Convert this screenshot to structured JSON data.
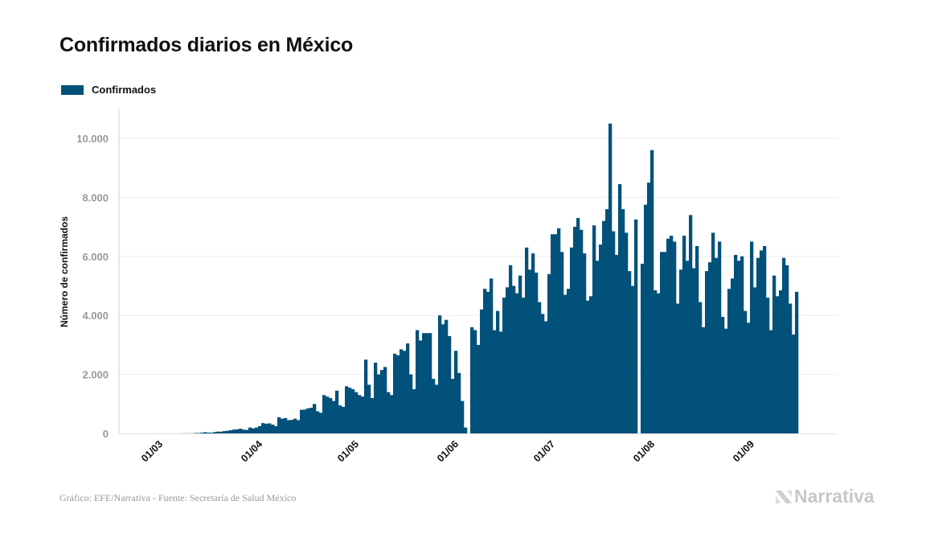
{
  "title": "Confirmados diarios en México",
  "footer": "Gráfico: EFE/Narrativa - Fuente: Secretaría de Salud México",
  "logo_text": "Narrativa",
  "colors": {
    "bar": "#02517a",
    "grid": "#ececec",
    "tick_label": "#999999"
  },
  "chart_data": {
    "type": "bar",
    "title": "Confirmados diarios en México",
    "ylabel": "Número de confirmados",
    "xlabel": "",
    "ylim": [
      0,
      11000
    ],
    "yticks": [
      0,
      2000,
      4000,
      6000,
      8000,
      10000
    ],
    "ytick_labels": [
      "0",
      "2.000",
      "4.000",
      "6.000",
      "8.000",
      "10.000"
    ],
    "xtick_labels": [
      "01/03",
      "01/04",
      "01/05",
      "01/06",
      "01/07",
      "01/08",
      "01/09"
    ],
    "grid": true,
    "legend": {
      "position": "top-left",
      "entries": [
        "Confirmados"
      ]
    },
    "x": [
      "28/02",
      "29/02",
      "01/03",
      "02/03",
      "03/03",
      "04/03",
      "05/03",
      "06/03",
      "07/03",
      "08/03",
      "09/03",
      "10/03",
      "11/03",
      "12/03",
      "13/03",
      "14/03",
      "15/03",
      "16/03",
      "17/03",
      "18/03",
      "19/03",
      "20/03",
      "21/03",
      "22/03",
      "23/03",
      "24/03",
      "25/03",
      "26/03",
      "27/03",
      "28/03",
      "29/03",
      "30/03",
      "31/03",
      "01/04",
      "02/04",
      "03/04",
      "04/04",
      "05/04",
      "06/04",
      "07/04",
      "08/04",
      "09/04",
      "10/04",
      "11/04",
      "12/04",
      "13/04",
      "14/04",
      "15/04",
      "16/04",
      "17/04",
      "18/04",
      "19/04",
      "20/04",
      "21/04",
      "22/04",
      "23/04",
      "24/04",
      "25/04",
      "26/04",
      "27/04",
      "28/04",
      "29/04",
      "30/04",
      "01/05",
      "02/05",
      "03/05",
      "04/05",
      "05/05",
      "06/05",
      "07/05",
      "08/05",
      "09/05",
      "10/05",
      "11/05",
      "12/05",
      "13/05",
      "14/05",
      "15/05",
      "16/05",
      "17/05",
      "18/05",
      "19/05",
      "20/05",
      "21/05",
      "22/05",
      "23/05",
      "24/05",
      "25/05",
      "26/05",
      "27/05",
      "28/05",
      "29/05",
      "30/05",
      "31/05",
      "01/06",
      "02/06",
      "03/06",
      "04/06",
      "05/06",
      "06/06",
      "07/06",
      "08/06",
      "09/06",
      "10/06",
      "11/06",
      "12/06",
      "13/06",
      "14/06",
      "15/06",
      "16/06",
      "17/06",
      "18/06",
      "19/06",
      "20/06",
      "21/06",
      "22/06",
      "23/06",
      "24/06",
      "25/06",
      "26/06",
      "27/06",
      "28/06",
      "29/06",
      "30/06",
      "01/07",
      "02/07",
      "03/07",
      "04/07",
      "05/07",
      "06/07",
      "07/07",
      "08/07",
      "09/07",
      "10/07",
      "11/07",
      "12/07",
      "13/07",
      "14/07",
      "15/07",
      "16/07",
      "17/07",
      "18/07",
      "19/07",
      "20/07",
      "21/07",
      "22/07",
      "23/07",
      "24/07",
      "25/07",
      "26/07",
      "27/07",
      "28/07",
      "29/07",
      "30/07",
      "31/07",
      "01/08",
      "02/08",
      "03/08",
      "04/08",
      "05/08",
      "06/08",
      "07/08",
      "08/08",
      "09/08",
      "10/08",
      "11/08",
      "12/08",
      "13/08",
      "14/08",
      "15/08",
      "16/08",
      "17/08",
      "18/08",
      "19/08",
      "20/08",
      "21/08",
      "22/08",
      "23/08",
      "24/08",
      "25/08",
      "26/08",
      "27/08",
      "28/08",
      "29/08",
      "30/08",
      "31/08",
      "01/09",
      "02/09",
      "03/09",
      "04/09",
      "05/09",
      "06/09",
      "07/09",
      "08/09",
      "09/09",
      "10/09",
      "11/09",
      "12/09",
      "13/09",
      "14/09",
      "15/09",
      "16/09"
    ],
    "series": [
      {
        "name": "Confirmados",
        "values": [
          1,
          2,
          0,
          1,
          1,
          2,
          2,
          1,
          0,
          2,
          3,
          4,
          5,
          5,
          14,
          15,
          26,
          41,
          29,
          25,
          46,
          62,
          60,
          80,
          90,
          110,
          130,
          140,
          160,
          130,
          120,
          200,
          170,
          200,
          250,
          350,
          330,
          340,
          300,
          250,
          550,
          500,
          520,
          450,
          460,
          500,
          450,
          800,
          810,
          850,
          870,
          1000,
          750,
          700,
          1300,
          1250,
          1200,
          1100,
          1450,
          950,
          900,
          1600,
          1550,
          1500,
          1400,
          1300,
          1250,
          2500,
          1650,
          1200,
          2400,
          2000,
          2150,
          2250,
          1400,
          1300,
          2700,
          2650,
          2850,
          2800,
          3050,
          2000,
          1500,
          3500,
          3150,
          3400,
          3400,
          3400,
          1850,
          1650,
          4000,
          3700,
          3850,
          3300,
          1850,
          2800,
          2050,
          1100,
          200,
          0,
          3600,
          3500,
          3000,
          4200,
          4900,
          4800,
          5250,
          3500,
          4150,
          3450,
          4600,
          4950,
          5700,
          5000,
          4750,
          5350,
          4600,
          6300,
          5550,
          6100,
          5450,
          4450,
          4050,
          3800,
          5400,
          6750,
          6750,
          6950,
          6150,
          4700,
          4900,
          6300,
          7000,
          7300,
          6900,
          6100,
          4500,
          4650,
          7050,
          5850,
          6400,
          7200,
          7600,
          10500,
          6850,
          6050,
          8450,
          7600,
          6800,
          5500,
          5000,
          7250,
          0,
          5750,
          7750,
          8500,
          9600,
          4850,
          4750,
          6150,
          6150,
          6600,
          6700,
          6500,
          4400,
          5550,
          6700,
          5850,
          7400,
          5600,
          6350,
          4450,
          3600,
          5500,
          5800,
          6800,
          5950,
          6500,
          3950,
          3550,
          4900,
          5250,
          6050,
          5850,
          6000,
          4150,
          3750,
          6500,
          4950,
          5950,
          6200,
          6350,
          4600,
          3500,
          5350,
          4650,
          4850,
          5950,
          5700,
          4400,
          3350,
          4800
        ]
      }
    ]
  }
}
